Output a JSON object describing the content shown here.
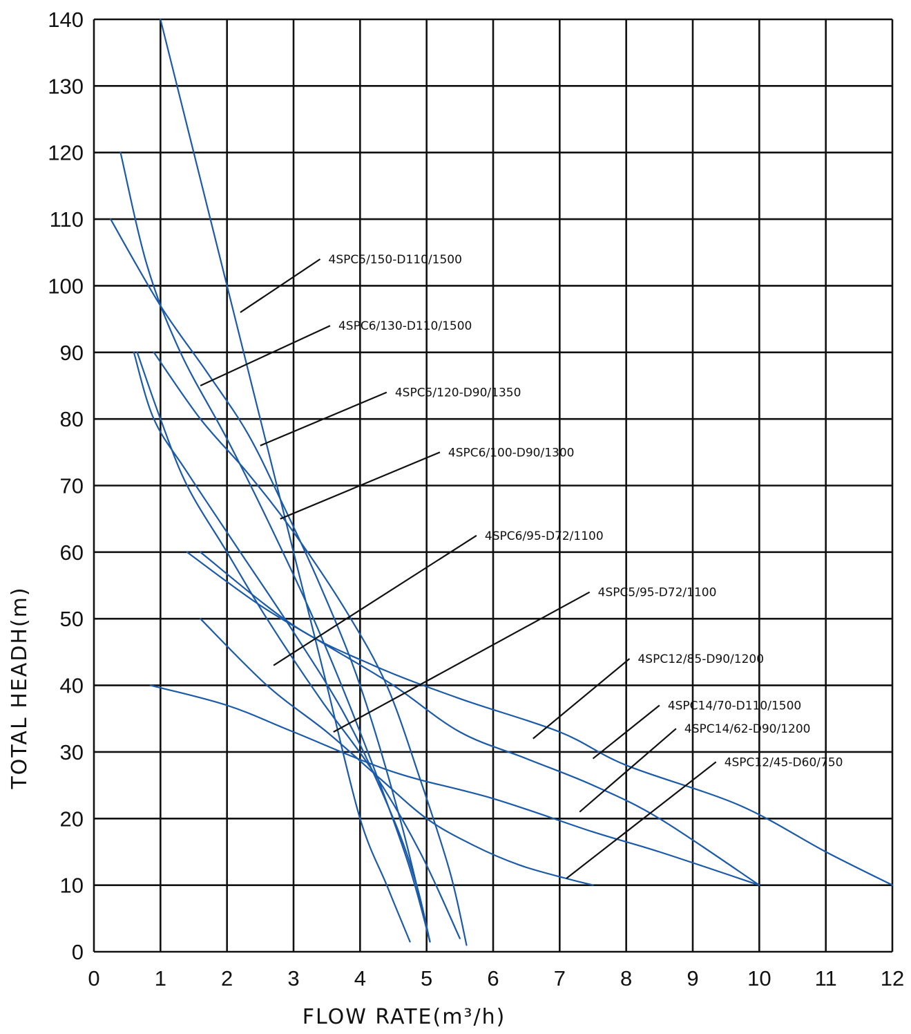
{
  "chart_data": {
    "type": "line",
    "xlabel": "FLOW RATE(m³/h)",
    "ylabel": "TOTAL HEADH(m)",
    "xlim": [
      0,
      12
    ],
    "ylim": [
      0,
      140
    ],
    "xticks": [
      "0",
      "1",
      "2",
      "3",
      "4",
      "5",
      "6",
      "7",
      "8",
      "9",
      "10",
      "11",
      "12"
    ],
    "yticks": [
      "0",
      "10",
      "20",
      "30",
      "40",
      "50",
      "60",
      "70",
      "80",
      "90",
      "100",
      "110",
      "120",
      "130",
      "140"
    ],
    "grid": true,
    "line_color": "#1a5aa8",
    "series": [
      {
        "name": "4SPC5/150-D110/1500",
        "x": [
          1.0,
          1.5,
          2.0,
          2.5,
          3.0,
          3.5,
          4.0,
          4.4,
          4.75
        ],
        "y": [
          140,
          120,
          100,
          80,
          60,
          40,
          20,
          10,
          1.5
        ]
      },
      {
        "name": "4SPC6/130-D110/1500",
        "x": [
          0.4,
          0.8,
          1.3,
          2.0,
          2.6,
          3.3,
          4.0,
          4.7,
          5.05
        ],
        "y": [
          120,
          103,
          90,
          77,
          65,
          50,
          33,
          14,
          1.5
        ]
      },
      {
        "name": "4SPC5/120-D90/1350",
        "x": [
          0.25,
          1.0,
          1.7,
          2.3,
          2.8,
          3.4,
          4.0,
          4.6,
          5.05
        ],
        "y": [
          110,
          97,
          87,
          78,
          68,
          55,
          40,
          20,
          1.5
        ]
      },
      {
        "name": "4SPC6/100-D90/1300",
        "x": [
          0.9,
          1.6,
          2.3,
          3.0,
          3.8,
          4.4,
          4.9,
          5.35,
          5.6
        ],
        "y": [
          90,
          80,
          72,
          63,
          51,
          40,
          26,
          12,
          1.0
        ]
      },
      {
        "name": "4SPC6/95-D72/1100",
        "x": [
          0.6,
          0.9,
          1.4,
          2.2,
          3.0,
          3.8,
          4.5,
          4.85,
          5.05
        ],
        "y": [
          90,
          80,
          72,
          60,
          48,
          35,
          20,
          10,
          1.5
        ]
      },
      {
        "name": "4SPC5/95-D72/1100",
        "x": [
          0.65,
          1.0,
          1.4,
          2.0,
          2.6,
          3.4,
          4.2,
          4.9,
          5.5
        ],
        "y": [
          90,
          80,
          70,
          60,
          50,
          38,
          27,
          15,
          2.0
        ]
      },
      {
        "name": "4SPC12/85-D90/1200",
        "x": [
          1.4,
          2.5,
          3.5,
          4.5,
          5.5,
          6.5,
          7.5,
          8.5,
          10.0
        ],
        "y": [
          60,
          52,
          46,
          40,
          33,
          29,
          25,
          20,
          10
        ]
      },
      {
        "name": "4SPC14/70-D110/1500",
        "x": [
          1.6,
          3.0,
          4.2,
          5.5,
          7.0,
          8.0,
          9.7,
          11.0,
          12.0
        ],
        "y": [
          60,
          49,
          43,
          38,
          33,
          28,
          22,
          15,
          10
        ]
      },
      {
        "name": "4SPC14/62-D90/1200",
        "x": [
          0.85,
          2.0,
          3.0,
          4.5,
          6.0,
          7.5,
          8.5,
          10.0
        ],
        "y": [
          40,
          37,
          33,
          27,
          23,
          18,
          15,
          10
        ]
      },
      {
        "name": "4SPC12/45-D60/750",
        "x": [
          1.6,
          2.6,
          3.5,
          4.3,
          5.0,
          5.7,
          6.4,
          7.1,
          7.5
        ],
        "y": [
          50,
          40,
          33,
          26,
          20,
          16,
          13,
          11,
          10
        ]
      }
    ],
    "annotations": [
      {
        "text": "4SPC5/150-D110/1500",
        "series": 0,
        "point": [
          2.2,
          96
        ],
        "label_at": [
          3.4,
          104
        ]
      },
      {
        "text": "4SPC6/130-D110/1500",
        "series": 1,
        "point": [
          1.6,
          85
        ],
        "label_at": [
          3.55,
          94
        ]
      },
      {
        "text": "4SPC5/120-D90/1350",
        "series": 2,
        "point": [
          2.5,
          76
        ],
        "label_at": [
          4.4,
          84
        ]
      },
      {
        "text": "4SPC6/100-D90/1300",
        "series": 3,
        "point": [
          2.8,
          65
        ],
        "label_at": [
          5.2,
          75
        ]
      },
      {
        "text": "4SPC6/95-D72/1100",
        "series": 4,
        "point": [
          2.7,
          43
        ],
        "label_at": [
          5.75,
          62.5
        ]
      },
      {
        "text": "4SPC5/95-D72/1100",
        "series": 5,
        "point": [
          3.6,
          33
        ],
        "label_at": [
          7.45,
          54
        ]
      },
      {
        "text": "4SPC12/85-D90/1200",
        "series": 6,
        "point": [
          6.6,
          32
        ],
        "label_at": [
          8.05,
          44
        ]
      },
      {
        "text": "4SPC14/70-D110/1500",
        "series": 7,
        "point": [
          7.5,
          29
        ],
        "label_at": [
          8.5,
          37
        ]
      },
      {
        "text": "4SPC14/62-D90/1200",
        "series": 8,
        "point": [
          7.3,
          21
        ],
        "label_at": [
          8.75,
          33.5
        ]
      },
      {
        "text": "4SPC12/45-D60/750",
        "series": 9,
        "point": [
          7.1,
          11
        ],
        "label_at": [
          9.35,
          28.5
        ]
      }
    ]
  }
}
